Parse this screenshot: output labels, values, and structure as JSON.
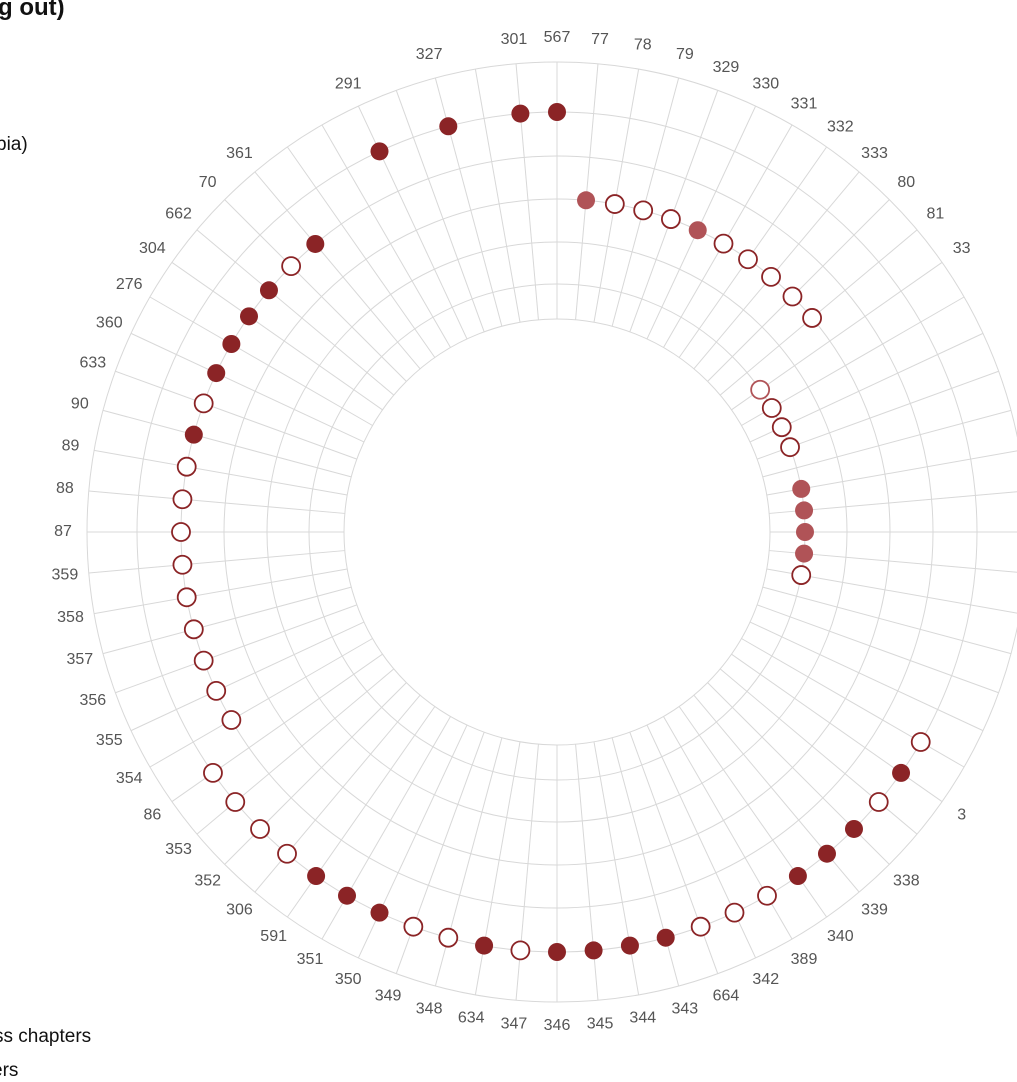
{
  "fragments": {
    "title": "g out)",
    "top_legend": "bia)",
    "bottom_legend_1": "ss chapters",
    "bottom_legend_2": "ers"
  },
  "colors": {
    "filled": "#8b2426",
    "filled_light": "#b05357",
    "outline": "#8b2426",
    "outline_light": "#b05357",
    "grid": "#d8d8d8",
    "label": "#555555"
  },
  "chart_data": {
    "type": "scatter",
    "polar": true,
    "grid": true,
    "ring_count": 5,
    "points": [
      {
        "label": "567",
        "angle": 0,
        "ring": 5,
        "filled": true,
        "shade": "dark"
      },
      {
        "label": "77",
        "angle": 5,
        "ring": 3,
        "filled": true,
        "shade": "light"
      },
      {
        "label": "78",
        "angle": 10,
        "ring": 3,
        "filled": false,
        "shade": "dark"
      },
      {
        "label": "79",
        "angle": 15,
        "ring": 3,
        "filled": false,
        "shade": "dark"
      },
      {
        "label": "329",
        "angle": 20,
        "ring": 3,
        "filled": false,
        "shade": "dark"
      },
      {
        "label": "330",
        "angle": 25,
        "ring": 3,
        "filled": true,
        "shade": "light"
      },
      {
        "label": "331",
        "angle": 30,
        "ring": 3,
        "filled": false,
        "shade": "dark"
      },
      {
        "label": "332",
        "angle": 35,
        "ring": 3,
        "filled": false,
        "shade": "dark"
      },
      {
        "label": "333",
        "angle": 40,
        "ring": 3,
        "filled": false,
        "shade": "dark"
      },
      {
        "label": "80",
        "angle": 45,
        "ring": 3,
        "filled": false,
        "shade": "dark"
      },
      {
        "label": "81",
        "angle": 50,
        "ring": 3,
        "filled": false,
        "shade": "dark"
      },
      {
        "label": "33",
        "angle": 55,
        "ring": 1,
        "filled": false,
        "shade": "light"
      },
      {
        "label": "",
        "angle": 60,
        "ring": 1,
        "filled": false,
        "shade": "dark"
      },
      {
        "label": "",
        "angle": 65,
        "ring": 1,
        "filled": false,
        "shade": "dark"
      },
      {
        "label": "",
        "angle": 70,
        "ring": 1,
        "filled": false,
        "shade": "dark"
      },
      {
        "label": "",
        "angle": 80,
        "ring": 1,
        "filled": true,
        "shade": "light"
      },
      {
        "label": "",
        "angle": 85,
        "ring": 1,
        "filled": true,
        "shade": "light"
      },
      {
        "label": "",
        "angle": 90,
        "ring": 1,
        "filled": true,
        "shade": "light"
      },
      {
        "label": "",
        "angle": 95,
        "ring": 1,
        "filled": true,
        "shade": "light"
      },
      {
        "label": "",
        "angle": 100,
        "ring": 1,
        "filled": false,
        "shade": "dark"
      },
      {
        "label": "",
        "angle": 120,
        "ring": 5,
        "filled": false,
        "shade": "dark"
      },
      {
        "label": "3",
        "angle": 125,
        "ring": 5,
        "filled": true,
        "shade": "dark"
      },
      {
        "label": "",
        "angle": 130,
        "ring": 5,
        "filled": false,
        "shade": "dark"
      },
      {
        "label": "338",
        "angle": 135,
        "ring": 5,
        "filled": true,
        "shade": "dark"
      },
      {
        "label": "339",
        "angle": 140,
        "ring": 5,
        "filled": true,
        "shade": "dark"
      },
      {
        "label": "340",
        "angle": 145,
        "ring": 5,
        "filled": true,
        "shade": "dark"
      },
      {
        "label": "389",
        "angle": 150,
        "ring": 5,
        "filled": false,
        "shade": "dark"
      },
      {
        "label": "342",
        "angle": 155,
        "ring": 5,
        "filled": false,
        "shade": "dark"
      },
      {
        "label": "664",
        "angle": 160,
        "ring": 5,
        "filled": false,
        "shade": "dark"
      },
      {
        "label": "343",
        "angle": 165,
        "ring": 5,
        "filled": true,
        "shade": "dark"
      },
      {
        "label": "344",
        "angle": 170,
        "ring": 5,
        "filled": true,
        "shade": "dark"
      },
      {
        "label": "345",
        "angle": 175,
        "ring": 5,
        "filled": true,
        "shade": "dark"
      },
      {
        "label": "346",
        "angle": 180,
        "ring": 5,
        "filled": true,
        "shade": "dark"
      },
      {
        "label": "347",
        "angle": 185,
        "ring": 5,
        "filled": false,
        "shade": "dark"
      },
      {
        "label": "634",
        "angle": 190,
        "ring": 5,
        "filled": true,
        "shade": "dark"
      },
      {
        "label": "348",
        "angle": 195,
        "ring": 5,
        "filled": false,
        "shade": "dark"
      },
      {
        "label": "349",
        "angle": 200,
        "ring": 5,
        "filled": false,
        "shade": "dark"
      },
      {
        "label": "350",
        "angle": 205,
        "ring": 5,
        "filled": true,
        "shade": "dark"
      },
      {
        "label": "351",
        "angle": 210,
        "ring": 5,
        "filled": true,
        "shade": "dark"
      },
      {
        "label": "591",
        "angle": 215,
        "ring": 5,
        "filled": true,
        "shade": "dark"
      },
      {
        "label": "306",
        "angle": 220,
        "ring": 5,
        "filled": false,
        "shade": "dark"
      },
      {
        "label": "352",
        "angle": 225,
        "ring": 5,
        "filled": false,
        "shade": "dark"
      },
      {
        "label": "353",
        "angle": 230,
        "ring": 5,
        "filled": false,
        "shade": "dark"
      },
      {
        "label": "86",
        "angle": 235,
        "ring": 5,
        "filled": false,
        "shade": "dark"
      },
      {
        "label": "354",
        "angle": 240,
        "ring": 4,
        "filled": false,
        "shade": "dark"
      },
      {
        "label": "355",
        "angle": 245,
        "ring": 4,
        "filled": false,
        "shade": "dark"
      },
      {
        "label": "356",
        "angle": 250,
        "ring": 4,
        "filled": false,
        "shade": "dark"
      },
      {
        "label": "357",
        "angle": 255,
        "ring": 4,
        "filled": false,
        "shade": "dark"
      },
      {
        "label": "358",
        "angle": 260,
        "ring": 4,
        "filled": false,
        "shade": "dark"
      },
      {
        "label": "359",
        "angle": 265,
        "ring": 4,
        "filled": false,
        "shade": "dark"
      },
      {
        "label": "87",
        "angle": 270,
        "ring": 4,
        "filled": false,
        "shade": "dark"
      },
      {
        "label": "88",
        "angle": 275,
        "ring": 4,
        "filled": false,
        "shade": "dark"
      },
      {
        "label": "89",
        "angle": 280,
        "ring": 4,
        "filled": false,
        "shade": "dark"
      },
      {
        "label": "90",
        "angle": 285,
        "ring": 4,
        "filled": true,
        "shade": "dark"
      },
      {
        "label": "633",
        "angle": 290,
        "ring": 4,
        "filled": false,
        "shade": "dark"
      },
      {
        "label": "360",
        "angle": 295,
        "ring": 4,
        "filled": true,
        "shade": "dark"
      },
      {
        "label": "276",
        "angle": 300,
        "ring": 4,
        "filled": true,
        "shade": "dark"
      },
      {
        "label": "304",
        "angle": 305,
        "ring": 4,
        "filled": true,
        "shade": "dark"
      },
      {
        "label": "662",
        "angle": 310,
        "ring": 4,
        "filled": true,
        "shade": "dark"
      },
      {
        "label": "70",
        "angle": 315,
        "ring": 4,
        "filled": false,
        "shade": "dark"
      },
      {
        "label": "361",
        "angle": 320,
        "ring": 4,
        "filled": true,
        "shade": "dark"
      },
      {
        "label": "291",
        "angle": 335,
        "ring": 5,
        "filled": true,
        "shade": "dark"
      },
      {
        "label": "327",
        "angle": 345,
        "ring": 5,
        "filled": true,
        "shade": "dark"
      },
      {
        "label": "301",
        "angle": 355,
        "ring": 5,
        "filled": true,
        "shade": "dark"
      }
    ]
  }
}
